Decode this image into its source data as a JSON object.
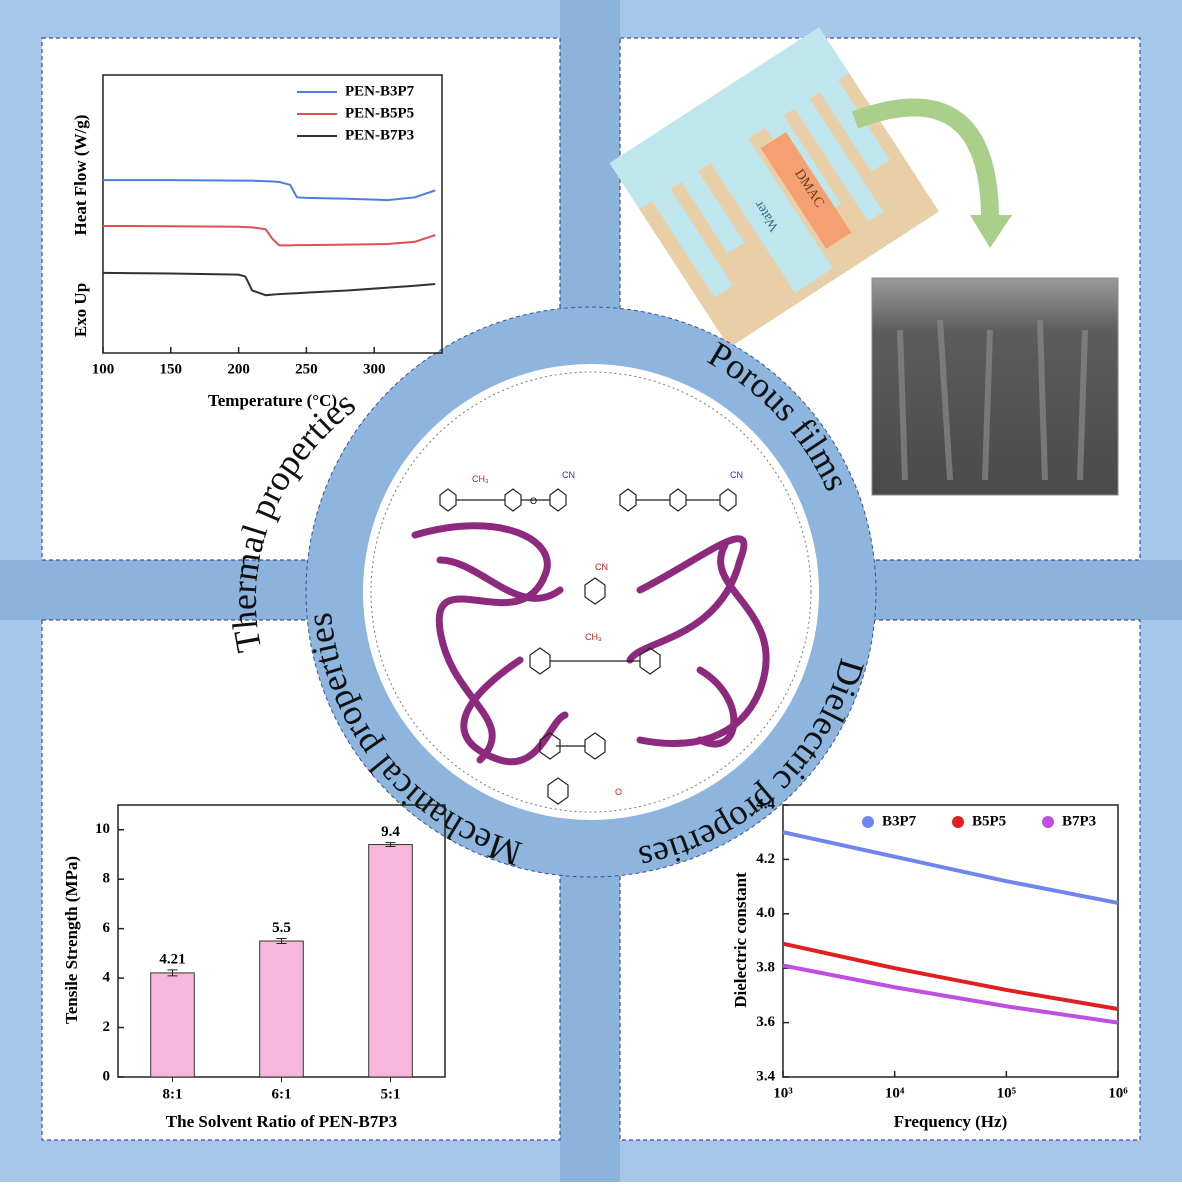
{
  "chart_data": [
    {
      "type": "line",
      "x_label": "Temperature (°C)",
      "y_label": "Heat Flow (W/g)",
      "y_annotation": "Exo Up",
      "x": [
        100,
        150,
        200,
        205,
        210,
        220,
        225,
        230,
        238,
        243,
        250,
        280,
        310,
        330,
        345
      ],
      "series": [
        {
          "name": "PEN-B3P7",
          "color": "#4a7fe0",
          "values": [
            6.22,
            6.22,
            6.2,
            6.2,
            6.2,
            6.18,
            6.17,
            6.15,
            6.05,
            5.6,
            5.58,
            5.55,
            5.5,
            5.6,
            5.85
          ]
        },
        {
          "name": "PEN-B5P5",
          "color": "#e05050",
          "values": [
            4.57,
            4.56,
            4.54,
            4.53,
            4.52,
            4.45,
            4.1,
            3.87,
            3.87,
            3.88,
            3.88,
            3.9,
            3.92,
            4.0,
            4.24
          ]
        },
        {
          "name": "PEN-B7P3",
          "color": "#333333",
          "values": [
            2.88,
            2.86,
            2.82,
            2.75,
            2.25,
            2.08,
            2.1,
            2.12,
            2.14,
            2.15,
            2.17,
            2.25,
            2.35,
            2.42,
            2.48
          ]
        }
      ],
      "xlim": [
        100,
        350
      ],
      "xticks": [
        100,
        150,
        200,
        250,
        300
      ],
      "ylim": [
        0,
        10
      ],
      "legend": "top-right"
    },
    {
      "type": "bar",
      "x_label": "The Solvent Ratio of PEN-B7P3",
      "y_label": "Tensile Strength (MPa)",
      "categories": [
        "8:1",
        "6:1",
        "5:1"
      ],
      "values": [
        4.21,
        5.5,
        9.4
      ],
      "errors": [
        0.12,
        0.1,
        0.08
      ],
      "color": "#f7b6dc",
      "ylim": [
        0,
        11
      ],
      "yticks": [
        0,
        2,
        4,
        6,
        8,
        10
      ]
    },
    {
      "type": "line",
      "x_label": "Frequency (Hz)",
      "y_label": "Dielectric constant",
      "xscale": "log",
      "x": [
        1000,
        10000,
        100000,
        1000000
      ],
      "series": [
        {
          "name": "B3P7",
          "color": "#6f86ee",
          "values": [
            4.3,
            4.21,
            4.12,
            4.04
          ]
        },
        {
          "name": "B5P5",
          "color": "#e02020",
          "values": [
            3.89,
            3.8,
            3.72,
            3.65
          ]
        },
        {
          "name": "B7P3",
          "color": "#c04ee0",
          "values": [
            3.81,
            3.73,
            3.66,
            3.6
          ]
        }
      ],
      "xlim": [
        1000,
        1000000
      ],
      "xticks": [
        {
          "value": 1000,
          "label": "10³"
        },
        {
          "value": 10000,
          "label": "10⁴"
        },
        {
          "value": 100000,
          "label": "10⁵"
        },
        {
          "value": 1000000,
          "label": "10⁶"
        }
      ],
      "ylim": [
        3.4,
        4.4
      ],
      "yticks": [
        3.4,
        3.6,
        3.8,
        {
          "value": 4.0,
          "label": "4.0"
        },
        4.2,
        4.4
      ],
      "legend": "top"
    }
  ],
  "ring_labels": [
    "Thermal properties",
    "Porous films",
    "Mechanical properties",
    "Dielectric properties"
  ],
  "diagram": {
    "solvent_a": "Water",
    "solvent_b": "DMAC"
  },
  "structure": {
    "cn": "CN",
    "methyl": "CH₃",
    "oxygen": "O"
  }
}
